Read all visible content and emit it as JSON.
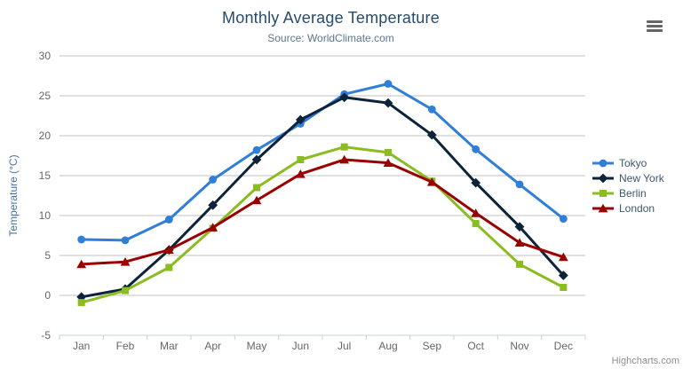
{
  "header": {
    "title": "Monthly Average Temperature",
    "subtitle": "Source: WorldClimate.com"
  },
  "credits": {
    "label": "Highcharts.com"
  },
  "context_menu": {
    "icon": "hamburger-icon"
  },
  "style_colors": {
    "title": "#274b6d",
    "subtitle": "#5a7692",
    "axis_title": "#4572a7",
    "tick_label": "#666666",
    "grid_line": "#c0c0c0",
    "axis_line": "#c0d0e0",
    "legend_text": "#3E576F",
    "credits_text": "#8f8f8f"
  },
  "chart_data": {
    "type": "line",
    "title": "Monthly Average Temperature",
    "subtitle": "Source: WorldClimate.com",
    "categories": [
      "Jan",
      "Feb",
      "Mar",
      "Apr",
      "May",
      "Jun",
      "Jul",
      "Aug",
      "Sep",
      "Oct",
      "Nov",
      "Dec"
    ],
    "xlabel": "",
    "ylabel": "Temperature (°C)",
    "ylim": [
      -5,
      30
    ],
    "ytick_interval": 5,
    "grid": true,
    "legend_position": "right",
    "series": [
      {
        "name": "Tokyo",
        "marker": "circle",
        "color": "#2f7ed8",
        "values": [
          7.0,
          6.9,
          9.5,
          14.5,
          18.2,
          21.5,
          25.2,
          26.5,
          23.3,
          18.3,
          13.9,
          9.6
        ]
      },
      {
        "name": "New York",
        "marker": "diamond",
        "color": "#0d233a",
        "values": [
          -0.2,
          0.8,
          5.7,
          11.3,
          17.0,
          22.0,
          24.8,
          24.1,
          20.1,
          14.1,
          8.6,
          2.5
        ]
      },
      {
        "name": "Berlin",
        "marker": "square",
        "color": "#8bbc21",
        "values": [
          -0.9,
          0.6,
          3.5,
          8.4,
          13.5,
          17.0,
          18.6,
          17.9,
          14.3,
          9.0,
          3.9,
          1.0
        ]
      },
      {
        "name": "London",
        "marker": "triangle",
        "color": "#990000",
        "values": [
          3.9,
          4.2,
          5.7,
          8.5,
          11.9,
          15.2,
          17.0,
          16.6,
          14.2,
          10.3,
          6.6,
          4.8
        ]
      }
    ]
  }
}
